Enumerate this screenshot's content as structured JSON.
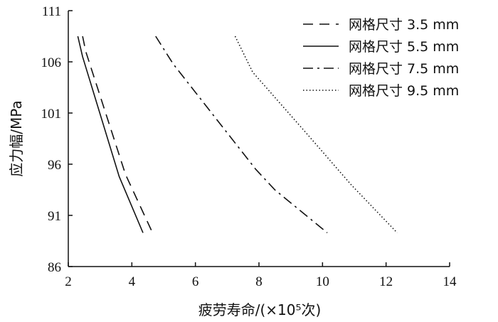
{
  "chart_data": {
    "type": "line",
    "xlabel": "疲劳寿命/(×10⁵次)",
    "ylabel": "应力幅/MPa",
    "xlim": [
      2,
      14
    ],
    "ylim": [
      86,
      111
    ],
    "xticks": [
      "2",
      "4",
      "6",
      "8",
      "10",
      "12",
      "14"
    ],
    "yticks": [
      "86",
      "91",
      "96",
      "101",
      "106",
      "111"
    ],
    "grid": false,
    "legend_position": "top-right",
    "series": [
      {
        "name": "网格尺寸 3.5 mm",
        "style": "dashed",
        "color": "#111111",
        "points": [
          [
            2.45,
            108.5
          ],
          [
            2.55,
            107.0
          ],
          [
            3.8,
            95.0
          ],
          [
            4.65,
            89.3
          ]
        ]
      },
      {
        "name": "网格尺寸 5.5 mm",
        "style": "solid",
        "color": "#111111",
        "points": [
          [
            2.3,
            108.5
          ],
          [
            2.45,
            106.5
          ],
          [
            3.6,
            94.8
          ],
          [
            4.35,
            89.3
          ]
        ]
      },
      {
        "name": "网格尺寸 7.5 mm",
        "style": "dashdot",
        "color": "#111111",
        "points": [
          [
            4.75,
            108.5
          ],
          [
            5.3,
            105.8
          ],
          [
            7.9,
            95.5
          ],
          [
            8.5,
            93.5
          ],
          [
            10.15,
            89.3
          ]
        ]
      },
      {
        "name": "网格尺寸 9.5 mm",
        "style": "dotted",
        "color": "#111111",
        "points": [
          [
            7.25,
            108.5
          ],
          [
            7.8,
            105.0
          ],
          [
            9.5,
            99.0
          ],
          [
            10.9,
            94.0
          ],
          [
            12.35,
            89.3
          ]
        ]
      }
    ]
  }
}
